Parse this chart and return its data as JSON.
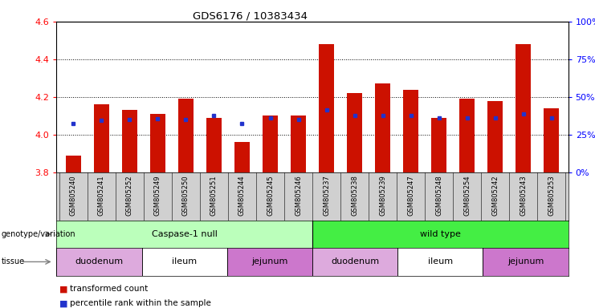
{
  "title": "GDS6176 / 10383434",
  "samples": [
    "GSM805240",
    "GSM805241",
    "GSM805252",
    "GSM805249",
    "GSM805250",
    "GSM805251",
    "GSM805244",
    "GSM805245",
    "GSM805246",
    "GSM805237",
    "GSM805238",
    "GSM805239",
    "GSM805247",
    "GSM805248",
    "GSM805254",
    "GSM805242",
    "GSM805243",
    "GSM805253"
  ],
  "red_values": [
    3.89,
    4.16,
    4.13,
    4.11,
    4.19,
    4.09,
    3.96,
    4.1,
    4.1,
    4.48,
    4.22,
    4.27,
    4.24,
    4.09,
    4.19,
    4.18,
    4.48,
    4.14
  ],
  "blue_values": [
    4.06,
    4.075,
    4.08,
    4.085,
    4.08,
    4.1,
    4.06,
    4.09,
    4.08,
    4.13,
    4.1,
    4.1,
    4.1,
    4.09,
    4.09,
    4.09,
    4.11,
    4.09
  ],
  "y_min": 3.8,
  "y_max": 4.6,
  "y_ticks_left": [
    3.8,
    4.0,
    4.2,
    4.4,
    4.6
  ],
  "y_ticks_right": [
    0,
    25,
    50,
    75,
    100
  ],
  "bar_color": "#cc1100",
  "blue_color": "#2233cc",
  "genotype_groups": [
    {
      "label": "Caspase-1 null",
      "start": 0,
      "end": 9,
      "color": "#bbffbb"
    },
    {
      "label": "wild type",
      "start": 9,
      "end": 18,
      "color": "#44ee44"
    }
  ],
  "tissue_groups": [
    {
      "label": "duodenum",
      "start": 0,
      "end": 3,
      "color": "#ddaadd"
    },
    {
      "label": "ileum",
      "start": 3,
      "end": 6,
      "color": "#ffffff"
    },
    {
      "label": "jejunum",
      "start": 6,
      "end": 9,
      "color": "#cc77cc"
    },
    {
      "label": "duodenum",
      "start": 9,
      "end": 12,
      "color": "#ddaadd"
    },
    {
      "label": "ileum",
      "start": 12,
      "end": 15,
      "color": "#ffffff"
    },
    {
      "label": "jejunum",
      "start": 15,
      "end": 18,
      "color": "#cc77cc"
    }
  ],
  "legend_red": "transformed count",
  "legend_blue": "percentile rank within the sample",
  "label_genotype": "genotype/variation",
  "label_tissue": "tissue"
}
